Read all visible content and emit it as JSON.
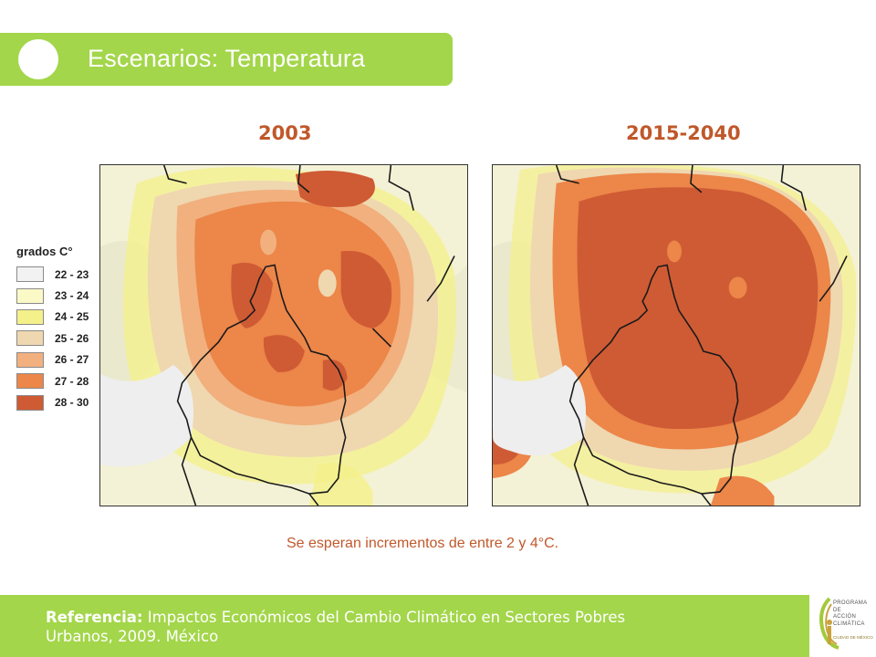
{
  "title": "Escenarios: Temperatura",
  "maps": [
    {
      "label": "2003"
    },
    {
      "label": "2015-2040"
    }
  ],
  "legend": {
    "title": "grados C°",
    "items": [
      {
        "range": "22 - 23",
        "color": "#f2f2f2"
      },
      {
        "range": "23 - 24",
        "color": "#fbf9c6"
      },
      {
        "range": "24 - 25",
        "color": "#f4f08a"
      },
      {
        "range": "25 - 26",
        "color": "#efd7b0"
      },
      {
        "range": "26 - 27",
        "color": "#f1b07e"
      },
      {
        "range": "27 - 28",
        "color": "#ec8649"
      },
      {
        "range": "28 - 30",
        "color": "#cf5b34"
      }
    ]
  },
  "caption": "Se esperan incrementos de entre 2 y 4°C.",
  "footer": {
    "reference_label": "Referencia:",
    "reference_text": " Impactos Económicos del Cambio Climático en Sectores Pobres Urbanos, 2009. México"
  },
  "logo": {
    "line1": "PROGRAMA DE",
    "line2": "ACCIÓN",
    "line3": "CLIMÁTICA",
    "line4": "CIUDAD DE MÉXICO"
  }
}
